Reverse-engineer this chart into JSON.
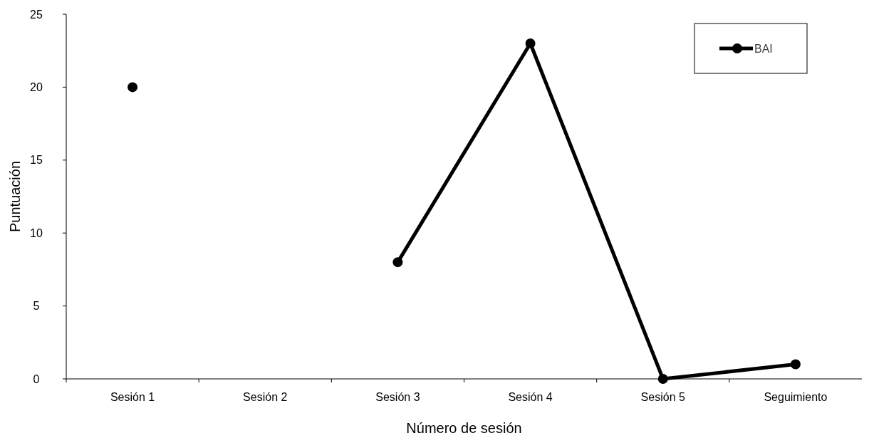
{
  "chart_data": {
    "type": "line",
    "xlabel": "Número de sesión",
    "ylabel": "Puntuación",
    "categories": [
      "Sesión 1",
      "Sesión 2",
      "Sesión 3",
      "Sesión 4",
      "Sesión 5",
      "Seguimiento"
    ],
    "series": [
      {
        "name": "BAI",
        "color": "#000000",
        "values": [
          20,
          null,
          8,
          23,
          0,
          1
        ]
      }
    ],
    "ylim": [
      0,
      25
    ],
    "yticks": [
      0,
      5,
      10,
      15,
      20,
      25
    ],
    "marker": "circle",
    "line_style": "solid",
    "legend": "top right",
    "grid": false
  }
}
